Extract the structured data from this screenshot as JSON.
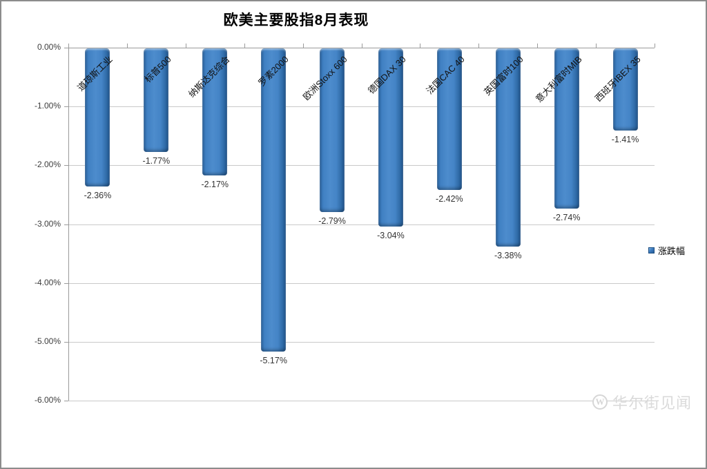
{
  "chart_data": {
    "type": "bar",
    "title": "欧美主要股指8月表现",
    "categories": [
      "道琼斯工业",
      "标普500",
      "纳斯达克综合",
      "罗素2000",
      "欧洲Stoxx 600",
      "德国DAX 30",
      "法国CAC 40",
      "英国富时100",
      "意大利富时MIB",
      "西班牙IBEX 35"
    ],
    "series": [
      {
        "name": "涨跌幅",
        "values": [
          -2.36,
          -1.77,
          -2.17,
          -5.17,
          -2.79,
          -3.04,
          -2.42,
          -3.38,
          -2.74,
          -1.41
        ]
      }
    ],
    "data_labels": [
      "-2.36%",
      "-1.77%",
      "-2.17%",
      "-5.17%",
      "-2.79%",
      "-3.04%",
      "-2.42%",
      "-3.38%",
      "-2.74%",
      "-1.41%"
    ],
    "xlabel": "",
    "ylabel": "",
    "y_axis": {
      "min": -6,
      "max": 0,
      "step": 1,
      "tick_labels": [
        "0.00%",
        "-1.00%",
        "-2.00%",
        "-3.00%",
        "-4.00%",
        "-5.00%",
        "-6.00%"
      ]
    },
    "grid": "horizontal",
    "legend": {
      "position": "right",
      "label": "涨跌幅"
    },
    "colors": {
      "bar_mid": "#4d8ccd",
      "bar_edge": "#1f5590",
      "gridline": "#c9c9c9",
      "axis": "#9a9a9a"
    }
  },
  "watermark": {
    "logo_letter": "W",
    "text": "华尔街见闻"
  }
}
